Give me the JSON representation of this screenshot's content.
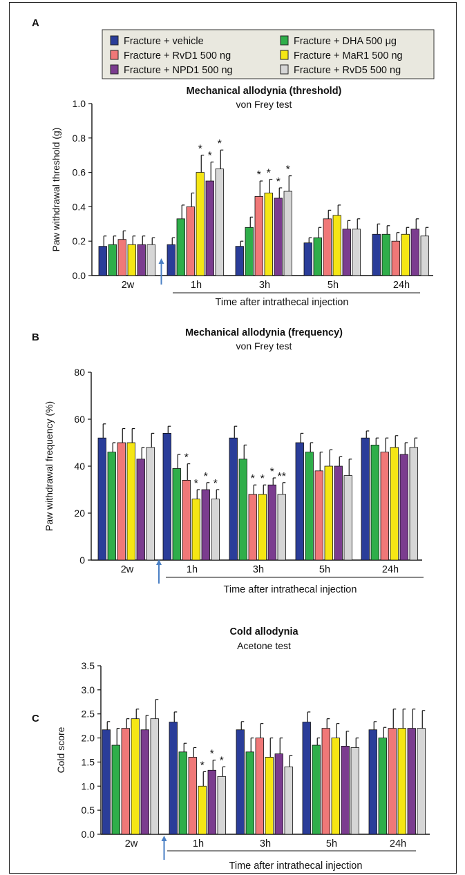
{
  "legend": {
    "items": [
      {
        "label": "Fracture + vehicle",
        "color": "#2a3d99"
      },
      {
        "label": "Fracture + RvD1 500 ng",
        "color": "#f07878"
      },
      {
        "label": "Fracture + NPD1 500 ng",
        "color": "#7b3c8f"
      },
      {
        "label": "Fracture + DHA 500 μg",
        "color": "#2fae4a"
      },
      {
        "label": "Fracture + MaR1 500 ng",
        "color": "#f5e614"
      },
      {
        "label": "Fracture + RvD5 500 ng",
        "color": "#d6d6d6"
      }
    ],
    "background": "#e9e8df"
  },
  "chart_data": [
    {
      "type": "bar",
      "panel": "A",
      "title": "Mechanical allodynia (threshold)",
      "subtitle": "von Frey test",
      "ylabel": "Paw withdrawal threshold (g)",
      "xlabel": "Time after intrathecal injection",
      "ylim": [
        0,
        1.0
      ],
      "yticks": [
        "0.0",
        "0.2",
        "0.4",
        "0.6",
        "0.8",
        "1.0"
      ],
      "yticks_values": [
        0,
        0.2,
        0.4,
        0.6,
        0.8,
        1.0
      ],
      "categories": [
        "2w",
        "1h",
        "3h",
        "5h",
        "24h"
      ],
      "series_order_by_group": [
        [
          "vehicle",
          "DHA",
          "RvD1",
          "MaR1",
          "NPD1",
          "RvD5"
        ],
        [
          "vehicle",
          "DHA",
          "RvD1",
          "MaR1",
          "NPD1",
          "RvD5"
        ],
        [
          "vehicle",
          "DHA",
          "RvD1",
          "MaR1",
          "NPD1",
          "RvD5"
        ],
        [
          "vehicle",
          "DHA",
          "RvD1",
          "MaR1",
          "NPD1",
          "RvD5"
        ],
        [
          "vehicle",
          "DHA",
          "RvD1",
          "MaR1",
          "NPD1",
          "RvD5"
        ]
      ],
      "values": [
        [
          0.17,
          0.18,
          0.21,
          0.18,
          0.18,
          0.18
        ],
        [
          0.18,
          0.33,
          0.4,
          0.6,
          0.55,
          0.62
        ],
        [
          0.17,
          0.28,
          0.46,
          0.48,
          0.45,
          0.49
        ],
        [
          0.19,
          0.22,
          0.33,
          0.35,
          0.27,
          0.27
        ],
        [
          0.24,
          0.24,
          0.2,
          0.24,
          0.27,
          0.23
        ]
      ],
      "errors": [
        [
          0.06,
          0.05,
          0.05,
          0.05,
          0.05,
          0.04
        ],
        [
          0.04,
          0.08,
          0.08,
          0.1,
          0.11,
          0.11
        ],
        [
          0.03,
          0.06,
          0.09,
          0.08,
          0.06,
          0.09
        ],
        [
          0.03,
          0.06,
          0.05,
          0.06,
          0.05,
          0.06
        ],
        [
          0.06,
          0.05,
          0.05,
          0.04,
          0.06,
          0.05
        ]
      ],
      "stars": [
        [
          0,
          0,
          0,
          0,
          0,
          0
        ],
        [
          0,
          0,
          0,
          1,
          1,
          1
        ],
        [
          0,
          0,
          1,
          1,
          1,
          1
        ],
        [
          0,
          0,
          0,
          0,
          0,
          0
        ],
        [
          0,
          0,
          0,
          0,
          0,
          0
        ]
      ]
    },
    {
      "type": "bar",
      "panel": "B",
      "title": "Mechanical allodynia (frequency)",
      "subtitle": "von Frey test",
      "ylabel": "Paw withdrawal frequency (%)",
      "xlabel": "Time after intrathecal injection",
      "ylim": [
        0,
        80
      ],
      "yticks": [
        "0",
        "20",
        "40",
        "60",
        "80"
      ],
      "yticks_values": [
        0,
        20,
        40,
        60,
        80
      ],
      "categories": [
        "2w",
        "1h",
        "3h",
        "5h",
        "24h"
      ],
      "series_order_by_group": [
        [
          "vehicle",
          "DHA",
          "RvD1",
          "MaR1",
          "NPD1",
          "RvD5"
        ],
        [
          "vehicle",
          "DHA",
          "RvD1",
          "MaR1",
          "NPD1",
          "RvD5"
        ],
        [
          "vehicle",
          "DHA",
          "RvD1",
          "MaR1",
          "NPD1",
          "RvD5"
        ],
        [
          "vehicle",
          "DHA",
          "RvD1",
          "MaR1",
          "NPD1",
          "RvD5"
        ],
        [
          "vehicle",
          "DHA",
          "RvD1",
          "MaR1",
          "NPD1",
          "RvD5"
        ]
      ],
      "values": [
        [
          52,
          46,
          50,
          50,
          43,
          48
        ],
        [
          54,
          39,
          34,
          26,
          30,
          26
        ],
        [
          52,
          43,
          28,
          28,
          32,
          28
        ],
        [
          50,
          46,
          38,
          40,
          40,
          36
        ],
        [
          52,
          49,
          46,
          48,
          45,
          48
        ]
      ],
      "errors": [
        [
          6,
          4,
          6,
          6,
          5,
          6
        ],
        [
          3,
          6,
          7,
          4,
          3,
          4
        ],
        [
          5,
          6,
          4,
          4,
          3,
          5
        ],
        [
          4,
          4,
          8,
          7,
          4,
          7
        ],
        [
          3,
          3,
          6,
          5,
          5,
          4
        ]
      ],
      "stars": [
        [
          0,
          0,
          0,
          0,
          0,
          0
        ],
        [
          0,
          0,
          1,
          1,
          1,
          1
        ],
        [
          0,
          0,
          1,
          1,
          1,
          2
        ],
        [
          0,
          0,
          0,
          0,
          0,
          0
        ],
        [
          0,
          0,
          0,
          0,
          0,
          0
        ]
      ]
    },
    {
      "type": "bar",
      "panel": "C",
      "title": "Cold allodynia",
      "subtitle": "Acetone test",
      "ylabel": "Cold score",
      "xlabel": "Time after intrathecal injection",
      "ylim": [
        0,
        3.5
      ],
      "yticks": [
        "0.0",
        "0.5",
        "1.0",
        "1.5",
        "2.0",
        "2.5",
        "3.0",
        "3.5"
      ],
      "yticks_values": [
        0,
        0.5,
        1.0,
        1.5,
        2.0,
        2.5,
        3.0,
        3.5
      ],
      "categories": [
        "2w",
        "1h",
        "3h",
        "5h",
        "24h"
      ],
      "series_order_by_group": [
        [
          "vehicle",
          "DHA",
          "RvD1",
          "MaR1",
          "NPD1",
          "RvD5"
        ],
        [
          "vehicle",
          "DHA",
          "RvD1",
          "MaR1",
          "NPD1",
          "RvD5"
        ],
        [
          "vehicle",
          "DHA",
          "RvD1",
          "MaR1",
          "NPD1",
          "RvD5"
        ],
        [
          "vehicle",
          "DHA",
          "RvD1",
          "MaR1",
          "NPD1",
          "RvD5"
        ],
        [
          "vehicle",
          "DHA",
          "RvD1",
          "MaR1",
          "NPD1",
          "RvD5"
        ]
      ],
      "values": [
        [
          2.17,
          1.85,
          2.2,
          2.4,
          2.17,
          2.4
        ],
        [
          2.33,
          1.71,
          1.6,
          1.0,
          1.33,
          1.2
        ],
        [
          2.17,
          1.71,
          2.0,
          1.6,
          1.67,
          1.4
        ],
        [
          2.33,
          1.85,
          2.2,
          2.0,
          1.83,
          1.8
        ],
        [
          2.17,
          2.0,
          2.2,
          2.2,
          2.2,
          2.2
        ]
      ],
      "errors": [
        [
          0.17,
          0.35,
          0.2,
          0.2,
          0.3,
          0.4
        ],
        [
          0.21,
          0.18,
          0.2,
          0.3,
          0.21,
          0.2
        ],
        [
          0.17,
          0.29,
          0.3,
          0.4,
          0.33,
          0.24
        ],
        [
          0.21,
          0.15,
          0.2,
          0.3,
          0.31,
          0.2
        ],
        [
          0.17,
          0.22,
          0.4,
          0.4,
          0.4,
          0.37
        ]
      ],
      "stars": [
        [
          0,
          0,
          0,
          0,
          0,
          0
        ],
        [
          0,
          0,
          0,
          1,
          1,
          1
        ],
        [
          0,
          0,
          0,
          0,
          0,
          0
        ],
        [
          0,
          0,
          0,
          0,
          0,
          0
        ],
        [
          0,
          0,
          0,
          0,
          0,
          0
        ]
      ]
    }
  ]
}
